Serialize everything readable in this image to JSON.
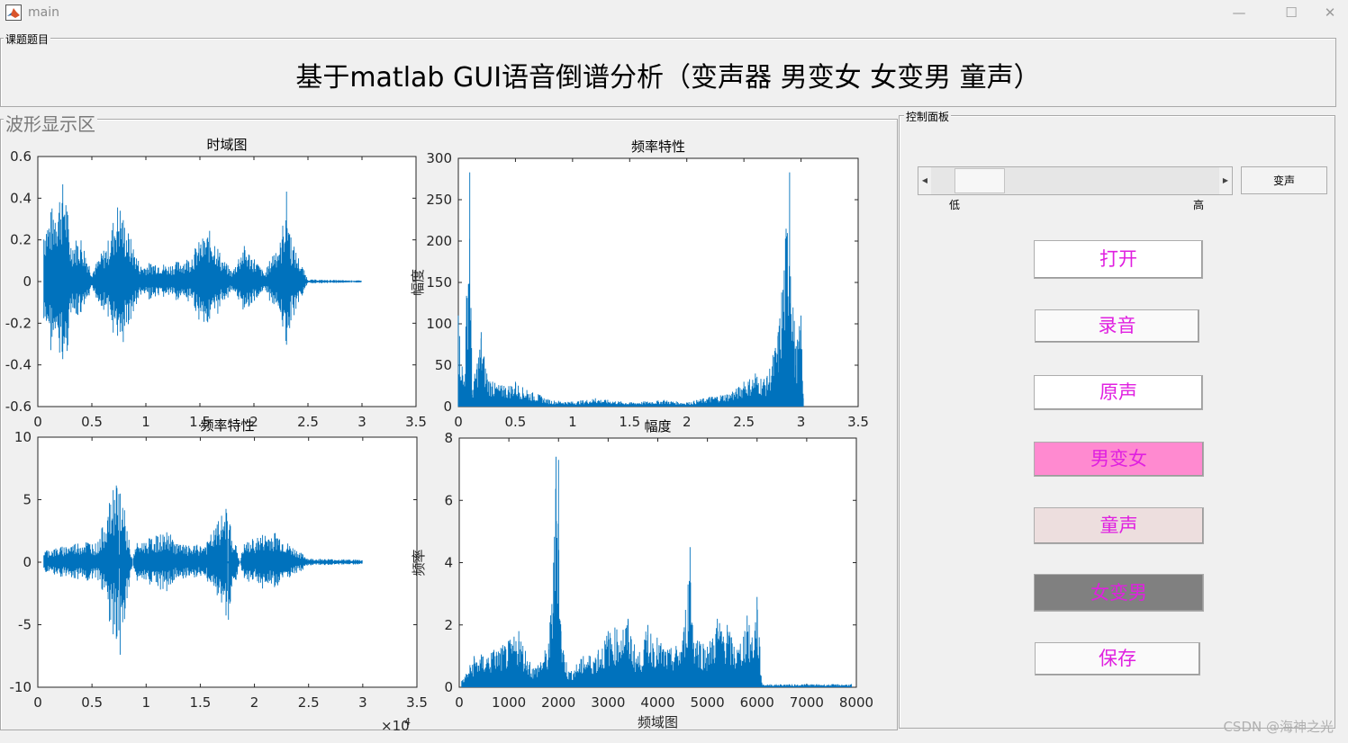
{
  "window": {
    "title": "main",
    "minimize_glyph": "—",
    "maximize_glyph": "☐",
    "close_glyph": "✕"
  },
  "topic_panel": {
    "label": "课题题目",
    "text": "基于matlab GUI语音倒谱分析（变声器 男变女 女变男 童声）"
  },
  "wave_panel": {
    "label": "波形显示区"
  },
  "control_panel": {
    "label": "控制面板",
    "slider_low": "低",
    "slider_high": "高",
    "slider_value": 0.1,
    "voice_change_button": "变声",
    "buttons": [
      {
        "label": "打开",
        "bg": "#ffffff"
      },
      {
        "label": "录音",
        "bg": "#fafafa"
      },
      {
        "label": "原声",
        "bg": "#ffffff"
      },
      {
        "label": "男变女",
        "bg": "#ff8ad0"
      },
      {
        "label": "童声",
        "bg": "#eddede"
      },
      {
        "label": "女变男",
        "bg": "#808080"
      },
      {
        "label": "保存",
        "bg": "#fafafa"
      }
    ],
    "button_text_color": "#e020e0"
  },
  "plots": [
    {
      "title": "时域图",
      "xticks": [
        "0",
        "0.5",
        "1",
        "1.5",
        "2",
        "2.5",
        "3",
        "3.5"
      ],
      "yticks": [
        "0.6",
        "0.4",
        "0.2",
        "0",
        "-0.2",
        "-0.4",
        "-0.6"
      ]
    },
    {
      "title": "频率特性",
      "ylabel": "幅度",
      "xticks": [
        "0",
        "0.5",
        "1",
        "1.5",
        "2",
        "2.5",
        "3",
        "3.5"
      ],
      "yticks": [
        "300",
        "250",
        "200",
        "150",
        "100",
        "50",
        "0"
      ]
    },
    {
      "title": "频率特性",
      "xticks": [
        "0",
        "0.5",
        "1",
        "1.5",
        "2",
        "2.5",
        "3",
        "3.5"
      ],
      "yticks": [
        "10",
        "5",
        "0",
        "-5",
        "-10"
      ],
      "xmultiplier": "×10",
      "xexp": "4"
    },
    {
      "title": "幅度",
      "ylabel": "频率",
      "xlabel": "频域图",
      "xticks": [
        "0",
        "1000",
        "2000",
        "3000",
        "4000",
        "5000",
        "6000",
        "7000",
        "8000"
      ],
      "yticks": [
        "8",
        "6",
        "4",
        "2",
        "0"
      ]
    }
  ],
  "chart_data": [
    {
      "type": "line",
      "title": "时域图",
      "xlim": [
        0,
        3.5
      ],
      "ylim": [
        -0.6,
        0.6
      ],
      "note_x_scale": "x10^4 samples",
      "series": [
        {
          "values": [
            [
              0.05,
              0.3
            ],
            [
              0.1,
              0.32
            ],
            [
              0.2,
              0.45
            ],
            [
              0.25,
              0.5
            ],
            [
              0.3,
              0.2
            ],
            [
              0.4,
              0.22
            ],
            [
              0.5,
              0.05
            ],
            [
              0.65,
              0.2
            ],
            [
              0.72,
              0.35
            ],
            [
              0.75,
              0.4
            ],
            [
              0.8,
              0.3
            ],
            [
              0.9,
              0.15
            ],
            [
              0.95,
              0.08
            ],
            [
              1.1,
              0.1
            ],
            [
              1.2,
              0.08
            ],
            [
              1.4,
              0.12
            ],
            [
              1.5,
              0.2
            ],
            [
              1.6,
              0.25
            ],
            [
              1.65,
              0.2
            ],
            [
              1.7,
              0.12
            ],
            [
              1.8,
              0.05
            ],
            [
              1.9,
              0.18
            ],
            [
              2.0,
              0.12
            ],
            [
              2.1,
              0.04
            ],
            [
              2.2,
              0.18
            ],
            [
              2.25,
              0.2
            ],
            [
              2.3,
              0.45
            ],
            [
              2.35,
              0.2
            ],
            [
              2.5,
              0.01
            ],
            [
              3.0,
              0.005
            ]
          ]
        }
      ]
    },
    {
      "type": "line",
      "title": "频率特性",
      "ylabel": "幅度",
      "xlim": [
        0,
        3.5
      ],
      "ylim": [
        0,
        300
      ],
      "series": [
        {
          "values": [
            [
              0.0,
              110
            ],
            [
              0.05,
              30
            ],
            [
              0.1,
              283
            ],
            [
              0.12,
              20
            ],
            [
              0.2,
              90
            ],
            [
              0.25,
              40
            ],
            [
              0.3,
              30
            ],
            [
              0.4,
              25
            ],
            [
              0.5,
              30
            ],
            [
              0.6,
              20
            ],
            [
              0.7,
              15
            ],
            [
              0.8,
              8
            ],
            [
              1.0,
              6
            ],
            [
              1.2,
              10
            ],
            [
              1.5,
              5
            ],
            [
              1.8,
              8
            ],
            [
              2.0,
              5
            ],
            [
              2.2,
              12
            ],
            [
              2.4,
              18
            ],
            [
              2.5,
              30
            ],
            [
              2.6,
              40
            ],
            [
              2.7,
              35
            ],
            [
              2.8,
              90
            ],
            [
              2.9,
              283
            ],
            [
              2.95,
              70
            ],
            [
              3.0,
              110
            ],
            [
              3.02,
              10
            ]
          ]
        }
      ]
    },
    {
      "type": "line",
      "title": "频率特性",
      "xlim": [
        0,
        3.5
      ],
      "ylim": [
        -10,
        10
      ],
      "x_multiplier": "x10^4",
      "series": [
        {
          "values": [
            [
              0.05,
              1.0
            ],
            [
              0.2,
              1.2
            ],
            [
              0.3,
              1.5
            ],
            [
              0.45,
              1.8
            ],
            [
              0.55,
              1.5
            ],
            [
              0.75,
              7.4
            ],
            [
              0.76,
              -7.4
            ],
            [
              0.9,
              1.5
            ],
            [
              1.05,
              2.0
            ],
            [
              1.15,
              2.3
            ],
            [
              1.2,
              2.5
            ],
            [
              1.3,
              1.5
            ],
            [
              1.4,
              1.3
            ],
            [
              1.55,
              1.5
            ],
            [
              1.75,
              4.6
            ],
            [
              1.76,
              -4.6
            ],
            [
              1.9,
              1.5
            ],
            [
              2.05,
              2.2
            ],
            [
              2.2,
              2.5
            ],
            [
              2.3,
              1.6
            ],
            [
              2.5,
              0.3
            ],
            [
              3.0,
              0.2
            ]
          ]
        }
      ]
    },
    {
      "type": "line",
      "title": "幅度",
      "ylabel": "频率",
      "xlabel": "频域图",
      "xlim": [
        0,
        8000
      ],
      "ylim": [
        0,
        8
      ],
      "series": [
        {
          "values": [
            [
              50,
              0.2
            ],
            [
              300,
              1.0
            ],
            [
              700,
              1.2
            ],
            [
              1000,
              1.5
            ],
            [
              1200,
              1.8
            ],
            [
              1500,
              0.6
            ],
            [
              1800,
              1.4
            ],
            [
              1900,
              4.0
            ],
            [
              1950,
              7.4
            ],
            [
              2000,
              7.3
            ],
            [
              2050,
              1.8
            ],
            [
              2200,
              0.5
            ],
            [
              2500,
              1.0
            ],
            [
              2800,
              1.2
            ],
            [
              3000,
              1.8
            ],
            [
              3400,
              2.2
            ],
            [
              3600,
              1.0
            ],
            [
              3800,
              2.0
            ],
            [
              4200,
              1.2
            ],
            [
              4500,
              1.5
            ],
            [
              4650,
              4.5
            ],
            [
              4700,
              2.0
            ],
            [
              5000,
              1.3
            ],
            [
              5200,
              2.2
            ],
            [
              5400,
              2.0
            ],
            [
              5600,
              1.2
            ],
            [
              5800,
              2.3
            ],
            [
              5900,
              1.6
            ],
            [
              6000,
              2.9
            ],
            [
              6100,
              0.1
            ],
            [
              7000,
              0.1
            ],
            [
              7900,
              0.1
            ]
          ]
        }
      ]
    }
  ]
}
